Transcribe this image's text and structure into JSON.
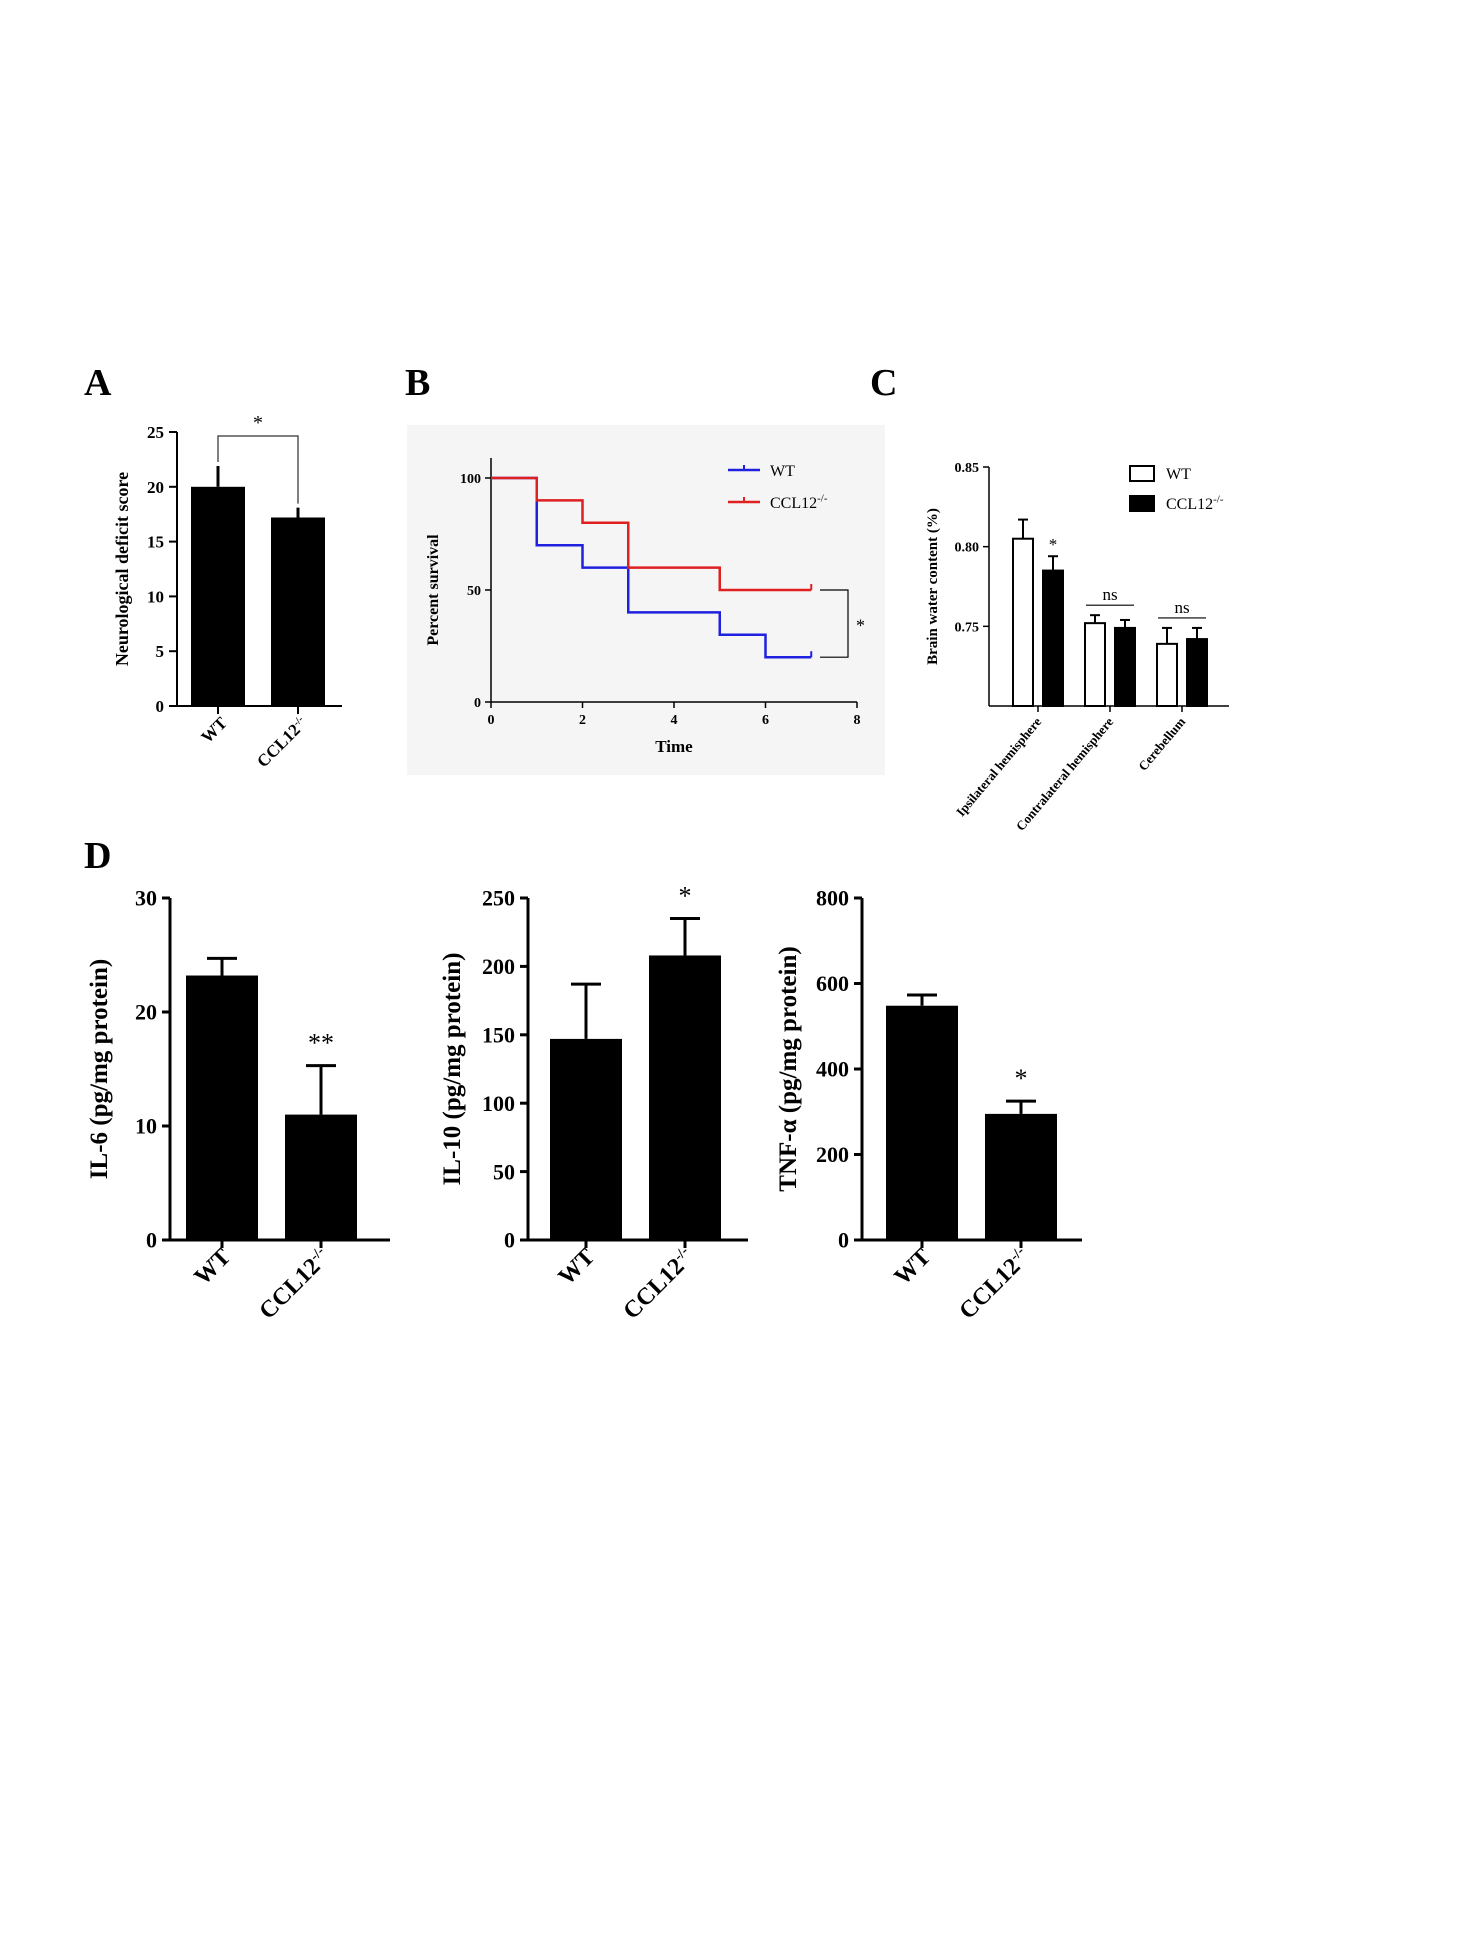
{
  "panels": {
    "A": {
      "label": "A"
    },
    "B": {
      "label": "B"
    },
    "C": {
      "label": "C"
    },
    "D": {
      "label": "D"
    }
  },
  "chart_data": [
    {
      "panel": "A",
      "type": "bar",
      "categories": [
        "WT",
        "CCL12-/-"
      ],
      "values": [
        20.0,
        17.2
      ],
      "errors": [
        1.9,
        0.9
      ],
      "ylabel": "Neurological deficit score",
      "ylim": [
        0,
        25
      ],
      "yticks": [
        0,
        5,
        10,
        15,
        20,
        25
      ],
      "bar_color": "#000000",
      "significance": "*"
    },
    {
      "panel": "B",
      "type": "line",
      "step": true,
      "xlabel": "Time",
      "ylabel": "Percent survival",
      "xlim": [
        0,
        8
      ],
      "ylim": [
        0,
        100
      ],
      "xticks": [
        0,
        2,
        4,
        6,
        8
      ],
      "yticks": [
        0,
        50,
        100
      ],
      "background": "#f5f5f5",
      "series": [
        {
          "name": "WT",
          "color": "#2020e0",
          "x": [
            0,
            1,
            2,
            3,
            5,
            6,
            7
          ],
          "y": [
            100,
            70,
            60,
            40,
            30,
            20,
            20
          ]
        },
        {
          "name": "CCL12-/-",
          "color": "#e02020",
          "x": [
            0,
            1,
            2,
            3,
            5,
            7
          ],
          "y": [
            100,
            90,
            80,
            60,
            50,
            50
          ]
        }
      ],
      "legend_position": "top-right",
      "significance": "*"
    },
    {
      "panel": "C",
      "type": "bar",
      "categories": [
        "Ipsilateral hemisphere",
        "Contralateral hemisphere",
        "Cerebellum"
      ],
      "ylabel": "Brain water content (%)",
      "ylim": [
        0.7,
        0.85
      ],
      "yticks": [
        0.75,
        0.8,
        0.85
      ],
      "ytick_labels": [
        "0.75",
        "0.80",
        "0.85"
      ],
      "series": [
        {
          "name": "WT",
          "fill": "#ffffff",
          "values": [
            0.805,
            0.752,
            0.739
          ],
          "errors": [
            0.012,
            0.005,
            0.01
          ]
        },
        {
          "name": "CCL12-/-",
          "fill": "#000000",
          "values": [
            0.785,
            0.749,
            0.742
          ],
          "errors": [
            0.009,
            0.005,
            0.007
          ]
        }
      ],
      "annotations": [
        "*",
        "ns",
        "ns"
      ],
      "legend_position": "top-right"
    },
    {
      "panel": "D1",
      "type": "bar",
      "categories": [
        "WT",
        "CCL12-/-"
      ],
      "values": [
        23.2,
        11.0
      ],
      "errors": [
        1.5,
        4.3
      ],
      "ylabel": "IL-6 (pg/mg protein)",
      "ylim": [
        0,
        30
      ],
      "yticks": [
        0,
        10,
        20,
        30
      ],
      "significance": "**"
    },
    {
      "panel": "D2",
      "type": "bar",
      "categories": [
        "WT",
        "CCL12-/-"
      ],
      "values": [
        147,
        208
      ],
      "errors": [
        40,
        27
      ],
      "ylabel": "IL-10 (pg/mg protein)",
      "ylim": [
        0,
        250
      ],
      "yticks": [
        0,
        50,
        100,
        150,
        200,
        250
      ],
      "significance": "*"
    },
    {
      "panel": "D3",
      "type": "bar",
      "categories": [
        "WT",
        "CCL12-/-"
      ],
      "values": [
        548,
        295
      ],
      "errors": [
        25,
        30
      ],
      "ylabel": "TNF-α (pg/mg protein)",
      "ylim": [
        0,
        800
      ],
      "yticks": [
        0,
        200,
        400,
        600,
        800
      ],
      "significance": "*"
    }
  ]
}
